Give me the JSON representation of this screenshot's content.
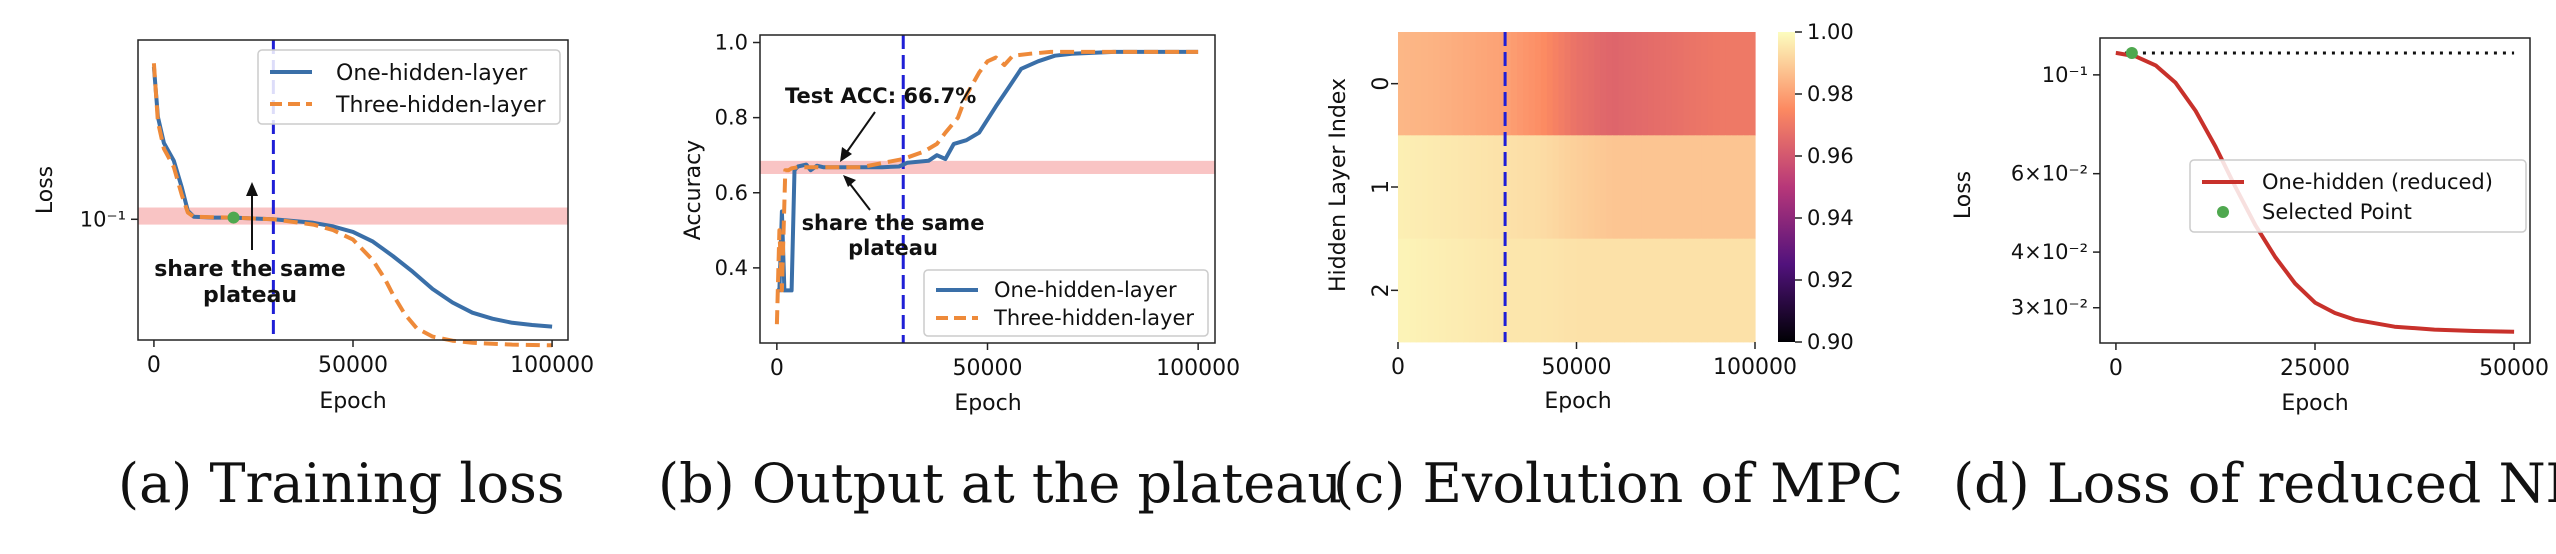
{
  "colors": {
    "one_hidden": "#3a6fa8",
    "three_hidden": "#ee8a3a",
    "plateau_band": "#f9c4c4",
    "vline": "#1f1fd6",
    "green_point": "#4fa84f",
    "reduced": "#c8312b"
  },
  "captions": [
    "(a)  Training loss",
    "(b)  Output at the plateau",
    "(c)  Evolution of MPC",
    "(d)  Loss of reduced NN"
  ],
  "chart_data": [
    {
      "id": "a",
      "type": "line",
      "title": "",
      "xlabel": "Epoch",
      "ylabel": "Loss",
      "log_y": true,
      "xlim": [
        -4000,
        104000
      ],
      "ylim": [
        0.05,
        0.28
      ],
      "x_ticks": [
        0,
        50000,
        100000
      ],
      "x_tick_labels": [
        "0",
        "50000",
        "100000"
      ],
      "y_ticks": [
        0.1
      ],
      "y_tick_labels": [
        "10⁻¹"
      ],
      "vline_x": 30000,
      "band": [
        0.097,
        0.107
      ],
      "legend": "top-right",
      "series": [
        {
          "name": "One-hidden-layer",
          "style": "solid",
          "color_key": "one_hidden",
          "x": [
            0,
            1000,
            2500,
            5000,
            7000,
            8500,
            10000,
            15000,
            20000,
            30000,
            40000,
            45000,
            50000,
            55000,
            60000,
            65000,
            70000,
            75000,
            80000,
            85000,
            90000,
            95000,
            100000
          ],
          "y": [
            0.24,
            0.18,
            0.155,
            0.14,
            0.12,
            0.105,
            0.1015,
            0.101,
            0.101,
            0.1,
            0.098,
            0.096,
            0.093,
            0.088,
            0.081,
            0.074,
            0.067,
            0.062,
            0.0585,
            0.0565,
            0.0552,
            0.0545,
            0.054
          ]
        },
        {
          "name": "Three-hidden-layer",
          "style": "dashed",
          "color_key": "three_hidden",
          "x": [
            0,
            1000,
            2500,
            5000,
            7000,
            8500,
            10000,
            15000,
            20000,
            30000,
            40000,
            45000,
            50000,
            55000,
            58000,
            60000,
            63000,
            66000,
            70000,
            75000,
            80000,
            90000,
            100000
          ],
          "y": [
            0.245,
            0.175,
            0.15,
            0.135,
            0.115,
            0.104,
            0.1015,
            0.1012,
            0.101,
            0.1,
            0.097,
            0.094,
            0.089,
            0.079,
            0.071,
            0.065,
            0.058,
            0.0535,
            0.051,
            0.0498,
            0.0492,
            0.0487,
            0.0485
          ]
        }
      ],
      "point": {
        "label": "",
        "x": 20000,
        "y": 0.101
      },
      "annotation": {
        "text_lines": [
          "share the same",
          "plateau"
        ],
        "arrow_to": [
          25000,
          0.1
        ]
      }
    },
    {
      "id": "b",
      "type": "line",
      "title": "",
      "xlabel": "Epoch",
      "ylabel": "Accuracy",
      "xlim": [
        -4000,
        104000
      ],
      "ylim": [
        0.2,
        1.02
      ],
      "x_ticks": [
        0,
        50000,
        100000
      ],
      "x_tick_labels": [
        "0",
        "50000",
        "100000"
      ],
      "y_ticks": [
        0.4,
        0.6,
        0.8,
        1.0
      ],
      "y_tick_labels": [
        "0.4",
        "0.6",
        "0.8",
        "1.0"
      ],
      "vline_x": 30000,
      "band": [
        0.65,
        0.685
      ],
      "legend": "bottom-right",
      "series": [
        {
          "name": "One-hidden-layer",
          "style": "solid",
          "color_key": "one_hidden",
          "x": [
            0,
            600,
            1200,
            1800,
            2500,
            3500,
            4200,
            5000,
            7000,
            8000,
            9500,
            11000,
            20000,
            25000,
            29000,
            31000,
            36000,
            38000,
            40000,
            42000,
            45000,
            48000,
            52000,
            55000,
            58000,
            62000,
            66000,
            70000,
            80000,
            100000
          ],
          "y": [
            0.34,
            0.34,
            0.55,
            0.34,
            0.34,
            0.34,
            0.66,
            0.67,
            0.675,
            0.66,
            0.672,
            0.668,
            0.668,
            0.668,
            0.67,
            0.68,
            0.685,
            0.7,
            0.69,
            0.73,
            0.74,
            0.76,
            0.83,
            0.88,
            0.93,
            0.95,
            0.965,
            0.97,
            0.975,
            0.975
          ]
        },
        {
          "name": "Three-hidden-layer",
          "style": "dashed",
          "color_key": "three_hidden",
          "x": [
            0,
            600,
            1200,
            2000,
            2800,
            3500,
            5000,
            10000,
            20000,
            30000,
            35000,
            38000,
            40000,
            43000,
            45000,
            48000,
            50000,
            52000,
            54000,
            56000,
            60000,
            65000,
            70000,
            80000,
            100000
          ],
          "y": [
            0.25,
            0.5,
            0.34,
            0.66,
            0.66,
            0.665,
            0.668,
            0.668,
            0.668,
            0.69,
            0.71,
            0.73,
            0.76,
            0.8,
            0.86,
            0.92,
            0.95,
            0.96,
            0.94,
            0.965,
            0.97,
            0.975,
            0.975,
            0.975,
            0.975
          ]
        }
      ],
      "annotation_acc": {
        "text": "Test ACC: 66.7%",
        "arrow_to": [
          15000,
          0.67
        ]
      },
      "annotation": {
        "text_lines": [
          "share the same",
          "plateau"
        ],
        "arrow_to": [
          17000,
          0.667
        ]
      }
    },
    {
      "id": "c",
      "type": "heatmap",
      "title": "",
      "xlabel": "Epoch",
      "ylabel": "Hidden Layer Index",
      "x_range": [
        0,
        100000
      ],
      "x_ticks": [
        0,
        50000,
        100000
      ],
      "x_tick_labels": [
        "0",
        "50000",
        "100000"
      ],
      "row_labels": [
        "0",
        "1",
        "2"
      ],
      "vline_x": 30000,
      "colorbar": {
        "min": 0.9,
        "max": 1.0,
        "ticks": [
          0.9,
          0.92,
          0.94,
          0.96,
          0.98,
          1.0
        ],
        "tick_labels": [
          "0.90",
          "0.92",
          "0.94",
          "0.96",
          "0.98",
          "1.00"
        ],
        "colormap": "magma"
      },
      "columns_x": [
        0,
        10000,
        20000,
        30000,
        40000,
        50000,
        60000,
        70000,
        80000,
        90000,
        100000
      ],
      "rows": [
        [
          0.985,
          0.984,
          0.982,
          0.98,
          0.976,
          0.968,
          0.964,
          0.966,
          0.968,
          0.97,
          0.97
        ],
        [
          0.997,
          0.996,
          0.995,
          0.994,
          0.993,
          0.99,
          0.988,
          0.988,
          0.988,
          0.988,
          0.988
        ],
        [
          0.998,
          0.997,
          0.996,
          0.995,
          0.995,
          0.994,
          0.994,
          0.994,
          0.994,
          0.994,
          0.994
        ]
      ]
    },
    {
      "id": "d",
      "type": "line",
      "title": "",
      "xlabel": "Epoch",
      "ylabel": "Loss",
      "log_y": true,
      "xlim": [
        -2000,
        52000
      ],
      "ylim": [
        0.025,
        0.121
      ],
      "x_ticks": [
        0,
        25000,
        50000
      ],
      "x_tick_labels": [
        "0",
        "25000",
        "50000"
      ],
      "y_ticks": [
        0.03,
        0.04,
        0.06,
        0.1
      ],
      "y_tick_labels": [
        "3×10⁻²",
        "4×10⁻²",
        "6×10⁻²",
        "10⁻¹"
      ],
      "hline_y": 0.112,
      "legend": "center-right",
      "series": [
        {
          "name": "One-hidden (reduced)",
          "style": "solid",
          "color_key": "reduced",
          "x": [
            0,
            2500,
            5000,
            7500,
            10000,
            12500,
            15000,
            17500,
            20000,
            22500,
            25000,
            27500,
            30000,
            35000,
            40000,
            45000,
            50000
          ],
          "y": [
            0.112,
            0.11,
            0.105,
            0.096,
            0.083,
            0.069,
            0.056,
            0.046,
            0.039,
            0.034,
            0.0308,
            0.0292,
            0.0282,
            0.0272,
            0.0268,
            0.0266,
            0.0265
          ]
        }
      ],
      "point": {
        "label": "Selected Point",
        "x": 2000,
        "y": 0.112
      }
    }
  ]
}
